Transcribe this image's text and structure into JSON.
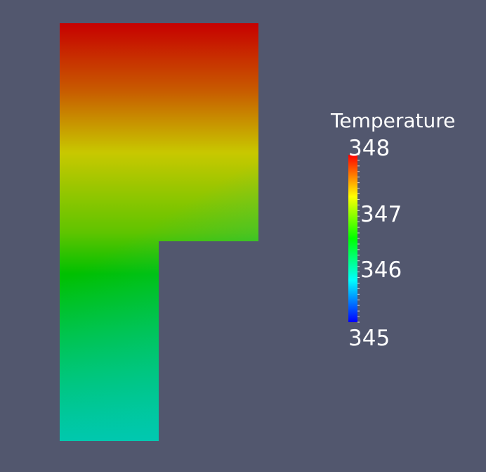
{
  "viewport": {
    "background_color": "#52576e"
  },
  "scalar_field": {
    "colormap": [
      "#0000ff",
      "#00ffff",
      "#00ff00",
      "#ffff00",
      "#ff0000"
    ],
    "top_color": "#c70000",
    "upper_mid_color": "#c8c800",
    "mid_color": "#00c000",
    "bottom_color": "#00c8b0"
  },
  "legend": {
    "title": "Temperature",
    "min_label": "345",
    "max_label": "348",
    "tick_labels": [
      "347",
      "346"
    ],
    "range": [
      345,
      348
    ]
  }
}
